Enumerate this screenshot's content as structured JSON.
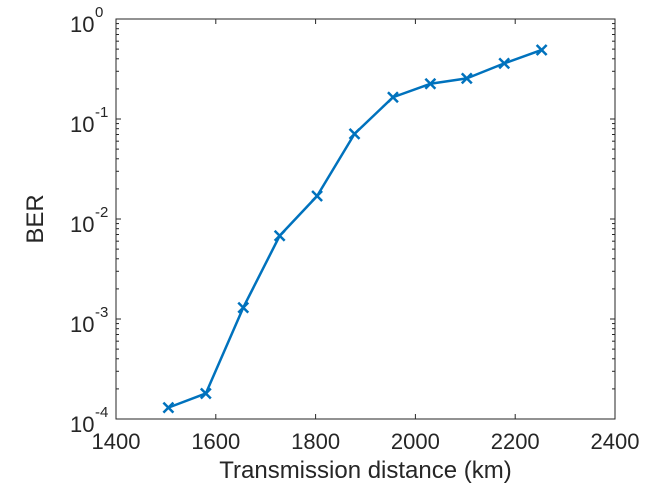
{
  "chart_data": {
    "type": "line",
    "title": "",
    "xlabel": "Transmission distance (km)",
    "ylabel": "BER",
    "xlim": [
      1400,
      2400
    ],
    "ylim": [
      0.0001,
      1
    ],
    "yscale": "log",
    "grid": false,
    "legend": "none",
    "xticks": [
      1400,
      1600,
      1800,
      2000,
      2200,
      2400
    ],
    "xtick_labels": [
      "1400",
      "1600",
      "1800",
      "2000",
      "2200",
      "2400"
    ],
    "yticks": [
      0.0001,
      0.001,
      0.01,
      0.1,
      1
    ],
    "ytick_labels": [
      {
        "base": "10",
        "exp": "-4"
      },
      {
        "base": "10",
        "exp": "-3"
      },
      {
        "base": "10",
        "exp": "-2"
      },
      {
        "base": "10",
        "exp": "-1"
      },
      {
        "base": "10",
        "exp": "0"
      }
    ],
    "series": [
      {
        "color": "#0072BD",
        "marker": "x",
        "x": [
          1505,
          1580,
          1655,
          1728,
          1803,
          1878,
          1955,
          2030,
          2103,
          2178,
          2253
        ],
        "y": [
          0.00013,
          0.00018,
          0.0013,
          0.0068,
          0.017,
          0.071,
          0.165,
          0.225,
          0.255,
          0.36,
          0.49
        ]
      }
    ]
  }
}
